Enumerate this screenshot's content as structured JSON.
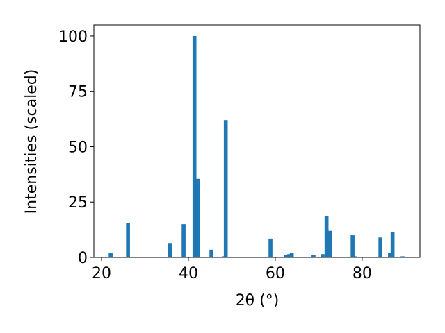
{
  "chart_data": {
    "type": "bar",
    "xlabel": "2θ (°)",
    "ylabel": "Intensities (scaled)",
    "x": [
      22.1,
      26.1,
      35.8,
      38.9,
      41.4,
      42.2,
      45.3,
      48.2,
      48.6,
      58.9,
      61.4,
      62.4,
      63.2,
      63.8,
      68.8,
      70.9,
      71.8,
      72.6,
      77.8,
      78.4,
      84.2,
      86.4,
      87.0,
      89.3
    ],
    "values": [
      2,
      15.5,
      6.5,
      15,
      100,
      35.5,
      3.5,
      0.5,
      62,
      8.5,
      0.3,
      1,
      1.5,
      2,
      1,
      1.5,
      18.5,
      12,
      10,
      0.5,
      9,
      2,
      11.5,
      0.5
    ],
    "color": "#1f77b4",
    "xlim": [
      18.24,
      93.3
    ],
    "xticks": [
      20,
      40,
      60,
      80
    ],
    "ylim": [
      0,
      105
    ],
    "yticks": [
      0,
      25,
      50,
      75,
      100
    ]
  }
}
